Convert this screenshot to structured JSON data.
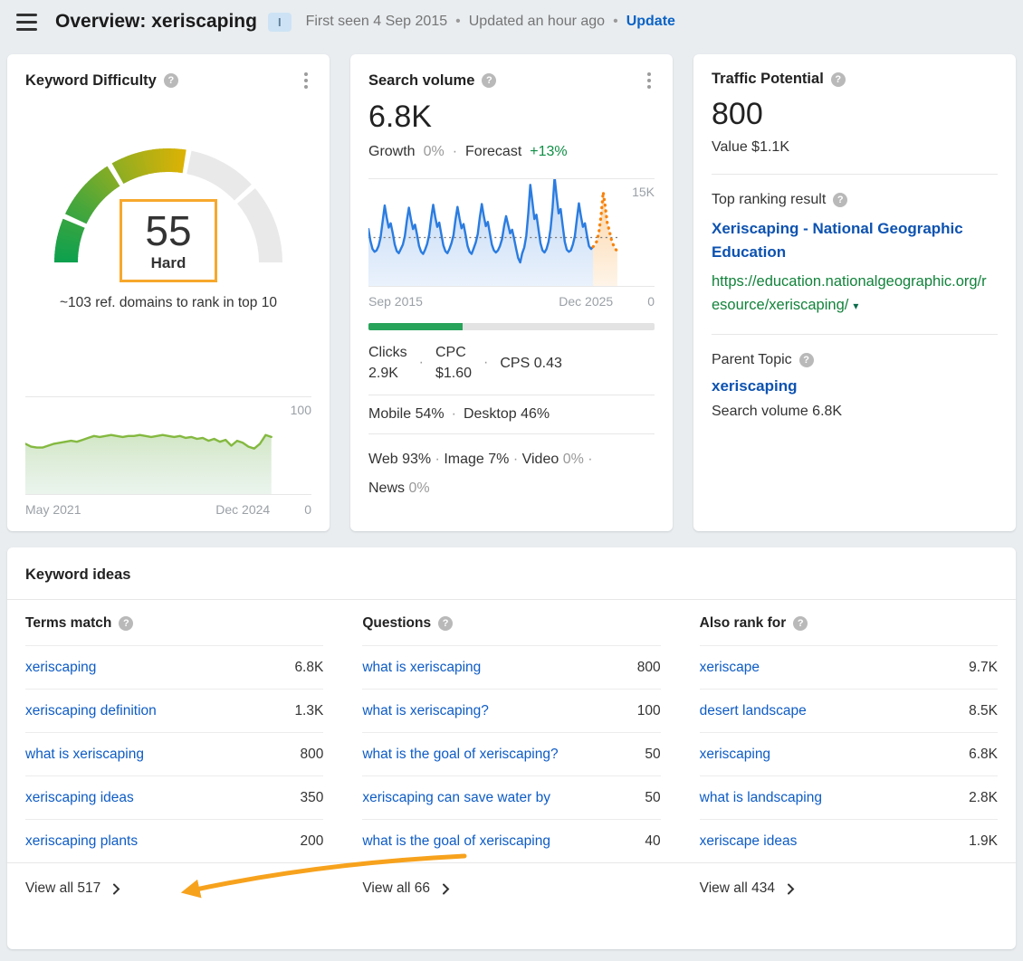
{
  "ui": {
    "middot": "·",
    "bullet": "•",
    "caret": "▾"
  },
  "header": {
    "title": "Overview: xeriscaping",
    "badge": "I",
    "first_seen": "First seen 4 Sep 2015",
    "updated": "Updated an hour ago",
    "update_link": "Update"
  },
  "keyword_difficulty": {
    "title": "Keyword Difficulty",
    "value": "55",
    "label": "Hard",
    "subtitle": "~103 ref. domains to rank in top 10",
    "axis_top": "100",
    "axis_bottom": "0",
    "axis_start": "May 2021",
    "axis_end": "Dec 2024"
  },
  "search_volume": {
    "title": "Search volume",
    "value": "6.8K",
    "growth_label": "Growth",
    "growth_value": "0%",
    "forecast_label": "Forecast",
    "forecast_value": "+13%",
    "axis_top": "15K",
    "axis_bottom": "0",
    "axis_start": "Sep 2015",
    "axis_end": "Dec 2025",
    "clicks_label": "Clicks",
    "clicks_value": "2.9K",
    "cpc_label": "CPC",
    "cpc_value": "$1.60",
    "cps_label": "CPS",
    "cps_value": "0.43",
    "mobile_label": "Mobile",
    "mobile_value": "54%",
    "desktop_label": "Desktop",
    "desktop_value": "46%",
    "web_label": "Web",
    "web_value": "93%",
    "image_label": "Image",
    "image_value": "7%",
    "video_label": "Video",
    "video_value": "0%",
    "news_label": "News",
    "news_value": "0%"
  },
  "traffic_potential": {
    "title": "Traffic Potential",
    "value": "800",
    "value_line": "Value $1.1K",
    "top_ranking_label": "Top ranking result",
    "result_title": "Xeriscaping - National Geographic Education",
    "result_url": "https://education.nationalgeographic.org/resource/xeriscaping/",
    "parent_topic_label": "Parent Topic",
    "parent_topic": "xeriscaping",
    "parent_topic_volume": "Search volume 6.8K"
  },
  "keyword_ideas": {
    "title": "Keyword ideas",
    "columns": [
      {
        "header": "Terms match",
        "view_all": "View all 517",
        "rows": [
          {
            "keyword": "xeriscaping",
            "volume": "6.8K"
          },
          {
            "keyword": "xeriscaping definition",
            "volume": "1.3K"
          },
          {
            "keyword": "what is xeriscaping",
            "volume": "800"
          },
          {
            "keyword": "xeriscaping ideas",
            "volume": "350"
          },
          {
            "keyword": "xeriscaping plants",
            "volume": "200"
          }
        ]
      },
      {
        "header": "Questions",
        "view_all": "View all 66",
        "rows": [
          {
            "keyword": "what is xeriscaping",
            "volume": "800"
          },
          {
            "keyword": "what is xeriscaping?",
            "volume": "100"
          },
          {
            "keyword": "what is the goal of xeriscaping?",
            "volume": "50"
          },
          {
            "keyword": "xeriscaping can save water by",
            "volume": "50"
          },
          {
            "keyword": "what is the goal of xeriscaping",
            "volume": "40"
          }
        ]
      },
      {
        "header": "Also rank for",
        "view_all": "View all 434",
        "rows": [
          {
            "keyword": "xeriscape",
            "volume": "9.7K"
          },
          {
            "keyword": "desert landscape",
            "volume": "8.5K"
          },
          {
            "keyword": "xeriscaping",
            "volume": "6.8K"
          },
          {
            "keyword": "what is landscaping",
            "volume": "2.8K"
          },
          {
            "keyword": "xeriscape ideas",
            "volume": "1.9K"
          }
        ]
      }
    ]
  },
  "colors": {
    "link_blue": "#0e5cc5",
    "result_blue": "#0d52b0",
    "url_green": "#12833b",
    "forecast_green": "#0f8f45",
    "gauge_box_orange": "#f7a82c",
    "arrow_orange": "#f7a21d",
    "bar_green": "#27a35a"
  },
  "chart_data": [
    {
      "type": "gauge",
      "name": "keyword-difficulty-gauge",
      "title": "Keyword Difficulty",
      "value": 55,
      "max": 100,
      "label": "Hard",
      "colored_segments": [
        {
          "from": 0,
          "to": 12.5
        },
        {
          "from": 14,
          "to": 32
        },
        {
          "from": 33.5,
          "to": 55
        }
      ],
      "color_stops": [
        [
          0,
          "#0ca04f"
        ],
        [
          18,
          "#46a63c"
        ],
        [
          36,
          "#97ae1f"
        ],
        [
          55,
          "#dcb204"
        ]
      ],
      "track_segments": [
        [
          56.5,
          76
        ],
        [
          77.5,
          100
        ]
      ],
      "track_color": "#e9e9e9"
    },
    {
      "type": "line",
      "name": "keyword-difficulty-history",
      "title": "Keyword Difficulty history",
      "x_start": "May 2021",
      "x_end": "Dec 2024",
      "ylim": [
        0,
        100
      ],
      "data_span": 0.86,
      "line_color": "#84b940",
      "fill_id": "gradGreen",
      "values": [
        52,
        49,
        48,
        48,
        50,
        52,
        53,
        54,
        55,
        54,
        56,
        58,
        60,
        59,
        60,
        61,
        60,
        59,
        60,
        60,
        61,
        60,
        59,
        60,
        61,
        60,
        59,
        60,
        58,
        59,
        57,
        58,
        55,
        57,
        54,
        56,
        50,
        55,
        53,
        49,
        47,
        52,
        61,
        59
      ]
    },
    {
      "type": "line",
      "name": "search-volume-history",
      "title": "Search volume history (K searches/month)",
      "x_start": "Sep 2015",
      "x_end": "Dec 2025",
      "ylim": [
        0,
        15
      ],
      "unit": "K",
      "average": 6.8,
      "data_span": 0.87,
      "line_color": "#2b7ce0",
      "fill_id": "gradBlue",
      "forecast_color": "#f8820b",
      "forecast_fill_id": "gradOrange",
      "values": [
        8.0,
        6.3,
        5.2,
        4.8,
        5.0,
        5.6,
        6.8,
        9.0,
        11.3,
        9.6,
        8.2,
        8.8,
        7.4,
        5.8,
        4.9,
        4.6,
        5.2,
        5.8,
        7.0,
        9.2,
        11.0,
        9.4,
        8.0,
        8.6,
        7.2,
        5.6,
        4.8,
        4.5,
        5.1,
        5.9,
        7.2,
        9.5,
        11.4,
        9.7,
        8.3,
        8.9,
        7.3,
        5.7,
        4.9,
        4.6,
        5.2,
        6.0,
        7.1,
        9.3,
        11.1,
        9.5,
        8.1,
        8.7,
        7.2,
        5.6,
        4.8,
        4.5,
        5.3,
        6.1,
        7.3,
        9.6,
        11.5,
        9.8,
        8.4,
        9.0,
        7.4,
        5.8,
        5.0,
        4.7,
        5.0,
        5.6,
        6.6,
        8.4,
        9.8,
        8.6,
        7.4,
        7.9,
        6.6,
        5.2,
        3.9,
        3.3,
        4.6,
        5.4,
        7.0,
        10.2,
        14.2,
        11.8,
        9.4,
        10.0,
        8.0,
        6.0,
        5.0,
        4.7,
        5.2,
        6.2,
        8.0,
        11.0,
        15.3,
        12.6,
        10.2,
        10.8,
        8.4,
        6.2,
        5.1,
        4.8,
        5.0,
        5.8,
        7.0,
        9.4,
        11.6,
        9.8,
        8.3,
        8.8,
        7.1,
        5.6,
        5.2,
        5.5
      ],
      "forecast_values": [
        5.8,
        6.4,
        7.8,
        10.0,
        13.2,
        11.2,
        8.9,
        7.8,
        6.6,
        5.8,
        5.2,
        4.9
      ]
    }
  ]
}
